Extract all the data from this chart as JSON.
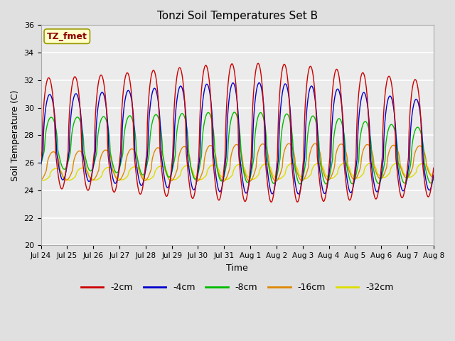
{
  "title": "Tonzi Soil Temperatures Set B",
  "xlabel": "Time",
  "ylabel": "Soil Temperature (C)",
  "annotation": "TZ_fmet",
  "ylim": [
    20,
    36
  ],
  "xlim": [
    0,
    15
  ],
  "fig_bg_color": "#e0e0e0",
  "plot_bg_color": "#ebebeb",
  "line_colors": {
    "-2cm": "#cc0000",
    "-4cm": "#0000cc",
    "-8cm": "#00bb00",
    "-16cm": "#dd8800",
    "-32cm": "#dddd00"
  },
  "xtick_labels": [
    "Jul 24",
    "Jul 25",
    "Jul 26",
    "Jul 27",
    "Jul 28",
    "Jul 29",
    "Jul 30",
    "Jul 31",
    "Aug 1",
    "Aug 2",
    "Aug 3",
    "Aug 4",
    "Aug 5",
    "Aug 6",
    "Aug 7",
    "Aug 8"
  ],
  "ytick_vals": [
    20,
    22,
    24,
    26,
    28,
    30,
    32,
    34,
    36
  ]
}
